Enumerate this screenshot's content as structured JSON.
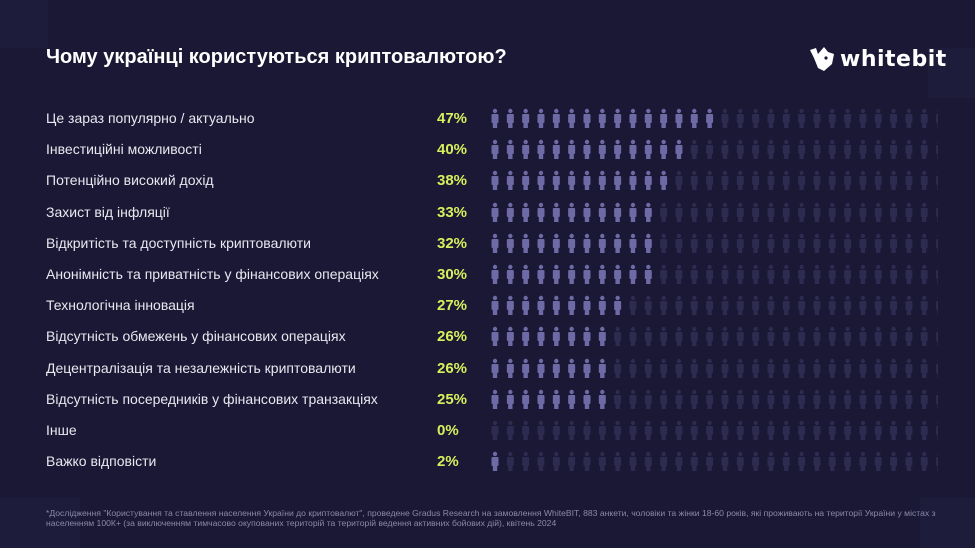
{
  "title": "Чому українці користуються криптовалютою?",
  "logo": {
    "text": "whitebit"
  },
  "colors": {
    "background": "#1a1834",
    "percent": "#d6f05c",
    "icon_filled": "#6e6aa6",
    "icon_empty": "#2d2b4f"
  },
  "chart_data": {
    "type": "pictogram",
    "title": "Чому українці користуються криптовалютою?",
    "icons_per_row": 30,
    "icon": "person-icon",
    "categories": [
      "Це зараз популярно / актуально",
      "Інвестиційні можливості",
      "Потенційно високий дохід",
      "Захист від інфляції",
      "Відкритість та доступність криптовалюти",
      "Анонімність та приватність у фінансових операціях",
      "Технологічна інновація",
      "Відсутність обмежень у фінансових операціях",
      "Децентралізація та незалежність криптовалюти",
      "Відсутність посередників у фінансових транзакціях",
      "Інше",
      "Важко відповісти"
    ],
    "value_labels": [
      "47%",
      "40%",
      "38%",
      "33%",
      "32%",
      "30%",
      "27%",
      "26%",
      "26%",
      "25%",
      "0%",
      "2%"
    ],
    "values": [
      47,
      40,
      38,
      33,
      32,
      30,
      27,
      26,
      26,
      25,
      0,
      2
    ],
    "icons_filled": [
      15,
      13,
      12,
      11,
      11,
      11,
      9,
      8,
      8,
      8,
      0,
      1
    ]
  },
  "footnote": "*Дослідження \"Користування та ставлення населення України до криптовалют\", проведене Gradus Research на замовлення WhiteBIT, 883 анкети, чоловіки та жінки 18-60 років, які проживають на території України у містах з населенням 100К+ (за виключенням тимчасово окупованих територій та територій ведення активних бойових дій), квітень 2024"
}
